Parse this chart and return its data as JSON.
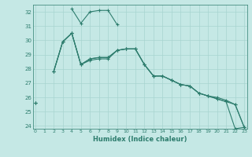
{
  "xlabel": "Humidex (Indice chaleur)",
  "bg_color": "#c5e8e5",
  "grid_color": "#a8d4d0",
  "line_color": "#2e7d6e",
  "ylim": [
    23.8,
    32.5
  ],
  "xlim": [
    -0.3,
    23.3
  ],
  "yticks": [
    24,
    25,
    26,
    27,
    28,
    29,
    30,
    31,
    32
  ],
  "xticks": [
    0,
    1,
    2,
    3,
    4,
    5,
    6,
    7,
    8,
    9,
    10,
    11,
    12,
    13,
    14,
    15,
    16,
    17,
    18,
    19,
    20,
    21,
    22,
    23
  ],
  "series": [
    [
      25.6,
      null,
      27.8,
      29.9,
      30.5,
      28.3,
      28.6,
      28.7,
      28.7,
      29.3,
      29.4,
      29.4,
      28.3,
      27.5,
      27.5,
      27.2,
      26.9,
      26.8,
      26.3,
      26.1,
      26.0,
      25.8,
      25.5,
      23.9
    ],
    [
      null,
      null,
      null,
      null,
      32.2,
      31.2,
      32.0,
      32.1,
      32.1,
      31.1,
      null,
      null,
      null,
      null,
      null,
      null,
      null,
      null,
      null,
      null,
      null,
      null,
      null,
      null
    ],
    [
      25.6,
      null,
      27.8,
      29.9,
      30.5,
      28.3,
      28.7,
      28.8,
      28.8,
      29.3,
      29.4,
      29.4,
      28.3,
      27.5,
      27.5,
      27.2,
      26.9,
      26.8,
      26.3,
      26.1,
      25.9,
      25.7,
      23.8,
      23.9
    ],
    [
      25.6,
      null,
      27.8,
      29.9,
      30.5,
      28.3,
      28.7,
      28.8,
      28.8,
      29.3,
      29.4,
      29.4,
      28.3,
      27.5,
      27.5,
      27.2,
      26.9,
      26.8,
      26.3,
      26.1,
      25.9,
      25.7,
      25.5,
      23.9
    ]
  ]
}
